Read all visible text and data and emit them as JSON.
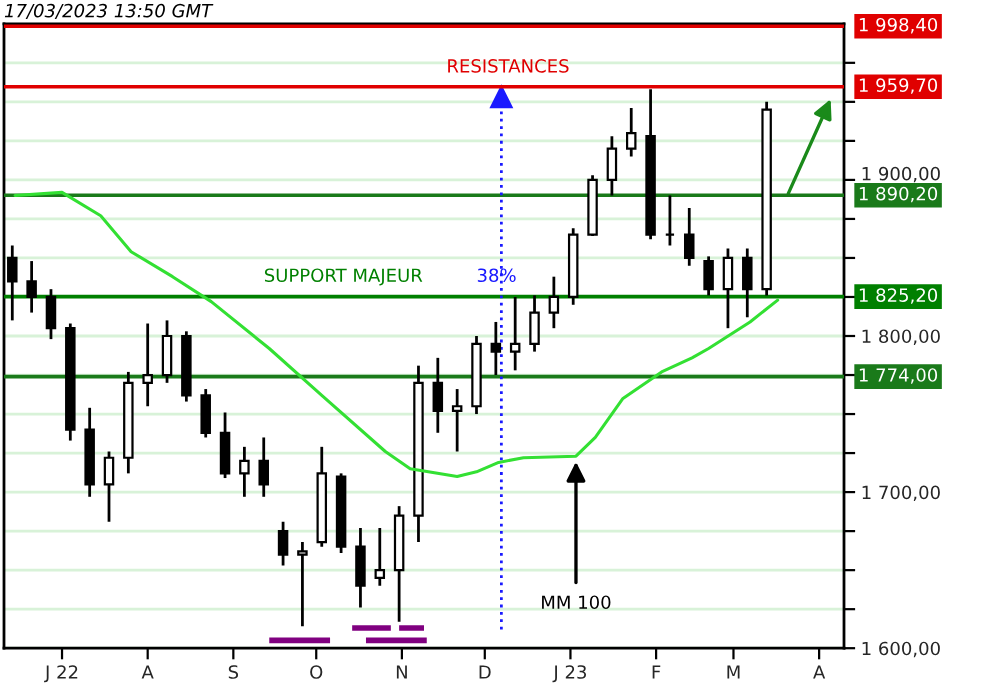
{
  "chart_data": {
    "type": "candlestick",
    "x": [
      "2022-06-13",
      "2022-06-20",
      "2022-06-27",
      "2022-07-04",
      "2022-07-11",
      "2022-07-18",
      "2022-07-25",
      "2022-08-01",
      "2022-08-08",
      "2022-08-15",
      "2022-08-22",
      "2022-08-29",
      "2022-09-05",
      "2022-09-12",
      "2022-09-19",
      "2022-09-26",
      "2022-10-03",
      "2022-10-10",
      "2022-10-17",
      "2022-10-24",
      "2022-10-31",
      "2022-11-07",
      "2022-11-14",
      "2022-11-21",
      "2022-11-28",
      "2022-12-05",
      "2022-12-12",
      "2022-12-19",
      "2022-12-26",
      "2023-01-02",
      "2023-01-09",
      "2023-01-16",
      "2023-01-23",
      "2023-01-30",
      "2023-02-06",
      "2023-02-13",
      "2023-02-20",
      "2023-02-27",
      "2023-03-06",
      "2023-03-13"
    ],
    "ohlc": [
      [
        1850,
        1858,
        1810,
        1835
      ],
      [
        1835,
        1848,
        1815,
        1825
      ],
      [
        1825,
        1830,
        1798,
        1805
      ],
      [
        1805,
        1808,
        1733,
        1740
      ],
      [
        1740,
        1754,
        1697,
        1705
      ],
      [
        1705,
        1726,
        1681,
        1722
      ],
      [
        1722,
        1777,
        1712,
        1770
      ],
      [
        1770,
        1808,
        1755,
        1775
      ],
      [
        1775,
        1810,
        1770,
        1800
      ],
      [
        1800,
        1803,
        1758,
        1762
      ],
      [
        1762,
        1766,
        1735,
        1738
      ],
      [
        1738,
        1751,
        1709,
        1712
      ],
      [
        1712,
        1729,
        1697,
        1720
      ],
      [
        1720,
        1735,
        1697,
        1705
      ],
      [
        1675,
        1681,
        1653,
        1660
      ],
      [
        1660,
        1668,
        1614,
        1662
      ],
      [
        1668,
        1729,
        1665,
        1712
      ],
      [
        1710,
        1712,
        1661,
        1665
      ],
      [
        1665,
        1677,
        1626,
        1640
      ],
      [
        1645,
        1677,
        1640,
        1650
      ],
      [
        1650,
        1691,
        1617,
        1685
      ],
      [
        1685,
        1781,
        1668,
        1770
      ],
      [
        1770,
        1786,
        1738,
        1752
      ],
      [
        1752,
        1766,
        1726,
        1755
      ],
      [
        1755,
        1800,
        1750,
        1795
      ],
      [
        1795,
        1809,
        1775,
        1790
      ],
      [
        1790,
        1825,
        1778,
        1795
      ],
      [
        1795,
        1826,
        1790,
        1815
      ],
      [
        1815,
        1838,
        1805,
        1825
      ],
      [
        1825,
        1869,
        1820,
        1865
      ],
      [
        1865,
        1903,
        1864,
        1900
      ],
      [
        1900,
        1928,
        1890,
        1920
      ],
      [
        1920,
        1946,
        1915,
        1930
      ],
      [
        1928,
        1958,
        1862,
        1865
      ],
      [
        1865,
        1890,
        1858,
        1865
      ],
      [
        1865,
        1882,
        1845,
        1850
      ],
      [
        1848,
        1851,
        1826,
        1830
      ],
      [
        1830,
        1856,
        1805,
        1850
      ],
      [
        1850,
        1856,
        1812,
        1830
      ],
      [
        1830,
        1950,
        1826,
        1945
      ]
    ],
    "color": "#000000",
    "series": [
      {
        "type": "line",
        "color": "#33e033",
        "x": [
          "2022-06-14",
          "2022-07-01",
          "2022-07-15",
          "2022-07-26",
          "2022-08-10",
          "2022-08-24",
          "2022-09-14",
          "2022-10-03",
          "2022-10-26",
          "2022-11-04",
          "2022-11-21",
          "2022-11-28",
          "2022-12-06",
          "2022-12-15",
          "2023-01-03",
          "2023-01-10",
          "2023-01-20",
          "2023-02-03",
          "2023-02-14",
          "2023-02-20",
          "2023-03-07",
          "2023-03-17"
        ],
        "values": [
          1890,
          1892,
          1877,
          1854,
          1838,
          1822,
          1792,
          1762,
          1726,
          1715,
          1710,
          1713,
          1719,
          1722,
          1723,
          1735,
          1760,
          1777,
          1786,
          1792,
          1809,
          1823
        ]
      }
    ],
    "xlim": [
      "2022-06-10",
      "2023-04-10"
    ],
    "xticks": [
      {
        "value": "2022-07-01",
        "label": "J 22"
      },
      {
        "value": "2022-08-01",
        "label": "A"
      },
      {
        "value": "2022-09-01",
        "label": "S"
      },
      {
        "value": "2022-10-01",
        "label": "O"
      },
      {
        "value": "2022-11-01",
        "label": "N"
      },
      {
        "value": "2022-12-01",
        "label": "D"
      },
      {
        "value": "2023-01-01",
        "label": "J 23"
      },
      {
        "value": "2023-02-01",
        "label": "F"
      },
      {
        "value": "2023-03-01",
        "label": "M"
      },
      {
        "value": "2023-04-01",
        "label": "A"
      }
    ],
    "ylim": [
      1600,
      2000
    ],
    "yticks": [
      {
        "value": 1600,
        "label": "1 600,00"
      },
      {
        "value": 1625,
        "label": null
      },
      {
        "value": 1650,
        "label": null
      },
      {
        "value": 1675,
        "label": null
      },
      {
        "value": 1700,
        "label": "1 700,00"
      },
      {
        "value": 1725,
        "label": null
      },
      {
        "value": 1750,
        "label": null
      },
      {
        "value": 1775,
        "label": null
      },
      {
        "value": 1800,
        "label": "1 800,00"
      },
      {
        "value": 1825,
        "label": null
      },
      {
        "value": 1850,
        "label": null
      },
      {
        "value": 1875,
        "label": null
      },
      {
        "value": 1900,
        "label": "1 900,00"
      },
      {
        "value": 1925,
        "label": null
      },
      {
        "value": 1950,
        "label": null
      },
      {
        "value": 1975,
        "label": null
      }
    ],
    "grid": "y",
    "ref_lines": [
      {
        "axis": "y",
        "value": 1998.4,
        "label": "1 998,40",
        "color": "#e00000"
      },
      {
        "axis": "y",
        "value": 1959.7,
        "label": "1 959,70",
        "color": "#e00000"
      },
      {
        "axis": "y",
        "value": 1890.2,
        "label": "1 890,20",
        "color": "#1a7a1a"
      },
      {
        "axis": "y",
        "value": 1825.2,
        "label": "1 825,20",
        "color": "#008000"
      },
      {
        "axis": "y",
        "value": 1774.0,
        "label": "1 774,00",
        "color": "#1a7a1a"
      },
      {
        "axis": "x",
        "value": "2022-12-07",
        "color": "#1a1aff",
        "line_style": "dotted"
      }
    ],
    "annotations": [
      "17/03/2023 13:50 GMT",
      "RESISTANCES",
      {
        "text": "SUPPORT MAJEUR",
        "x": "2022-09-12",
        "y": 1825.2
      },
      {
        "text": "38%",
        "x": "2022-11-28",
        "y": 1825.2
      },
      {
        "text": "MM 100",
        "x": "2023-01-03",
        "y": 1723
      }
    ]
  }
}
